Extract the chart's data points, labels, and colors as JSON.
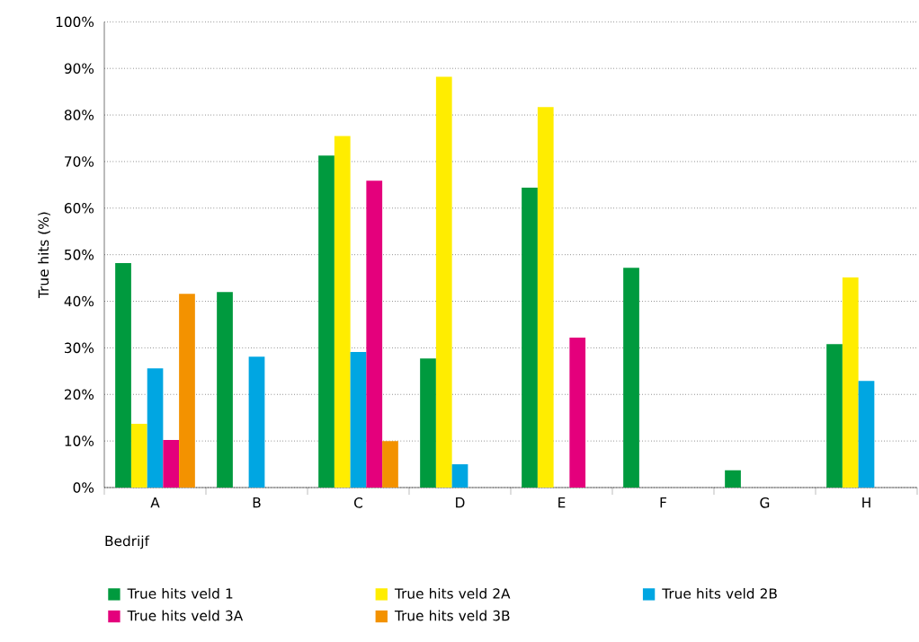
{
  "chart_data": {
    "type": "bar",
    "xlabel": "Bedrijf",
    "ylabel": "True hits (%)",
    "categories": [
      "A",
      "B",
      "C",
      "D",
      "E",
      "F",
      "G",
      "H"
    ],
    "series": [
      {
        "name": "True hits veld 1",
        "color": "#009a3e",
        "values": [
          48.2,
          42,
          71.3,
          27.7,
          64.4,
          47.2,
          3.7,
          30.8
        ]
      },
      {
        "name": "True hits veld 2A",
        "color": "#ffed00",
        "values": [
          13.7,
          null,
          75.5,
          88.2,
          81.7,
          null,
          null,
          45.1
        ]
      },
      {
        "name": "True hits veld 2B",
        "color": "#00a6e2",
        "values": [
          25.6,
          28.1,
          29.1,
          5.0,
          null,
          null,
          null,
          22.9
        ]
      },
      {
        "name": "True hits veld 3A",
        "color": "#e4007c",
        "values": [
          10.2,
          null,
          65.9,
          null,
          32.2,
          null,
          null,
          null
        ]
      },
      {
        "name": "True hits veld 3B",
        "color": "#f39200",
        "values": [
          41.6,
          null,
          10.0,
          null,
          null,
          null,
          null,
          null
        ]
      }
    ],
    "ylim": [
      0,
      100
    ],
    "yticks": [
      {
        "value": 0,
        "label": "0%"
      },
      {
        "value": 10,
        "label": "10%"
      },
      {
        "value": 20,
        "label": "20%"
      },
      {
        "value": 30,
        "label": "30%"
      },
      {
        "value": 40,
        "label": "40%"
      },
      {
        "value": 50,
        "label": "50%"
      },
      {
        "value": 60,
        "label": "60%"
      },
      {
        "value": 70,
        "label": "70%"
      },
      {
        "value": 80,
        "label": "80%"
      },
      {
        "value": 90,
        "label": "90%"
      },
      {
        "value": 100,
        "label": "100%"
      }
    ],
    "grid": "y",
    "legend": "bottom"
  }
}
